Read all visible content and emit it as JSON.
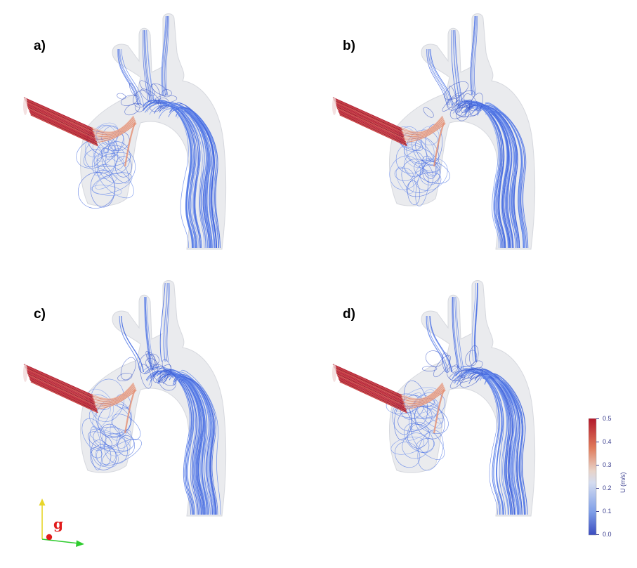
{
  "panels": [
    {
      "id": "a",
      "label": "a)"
    },
    {
      "id": "b",
      "label": "b)"
    },
    {
      "id": "c",
      "label": "c)"
    },
    {
      "id": "d",
      "label": "d)"
    }
  ],
  "colorbar": {
    "title": "U (m/s)",
    "ticks": [
      "0.5",
      "0.4",
      "0.3",
      "0.2",
      "0.1",
      "0.0"
    ],
    "colors": {
      "high": "#b2182b",
      "mid": "#dddddd",
      "low": "#3b4cc0"
    }
  },
  "gravity": {
    "label": "g",
    "colors": {
      "up": "#e8d62a",
      "right": "#2ecc2e",
      "dot": "#e11b1b"
    }
  }
}
